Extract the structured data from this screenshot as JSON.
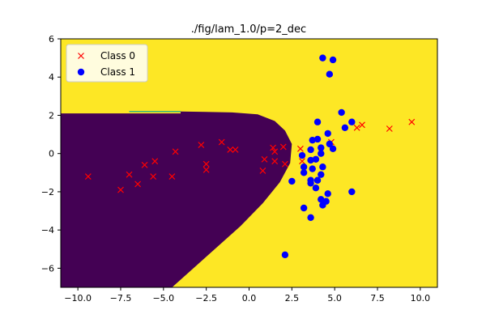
{
  "chart_data": {
    "type": "scatter",
    "title": "./fig/lam_1.0/p=2_dec",
    "xlabel": "",
    "ylabel": "",
    "xlim": [
      -11,
      11
    ],
    "ylim": [
      -7,
      6
    ],
    "x_ticks": [
      -10.0,
      -7.5,
      -5.0,
      -2.5,
      0.0,
      2.5,
      5.0,
      7.5,
      10.0
    ],
    "x_tick_labels": [
      "−10.0",
      "−7.5",
      "−5.0",
      "−2.5",
      "0.0",
      "2.5",
      "5.0",
      "7.5",
      "10.0"
    ],
    "y_ticks": [
      -6,
      -4,
      -2,
      0,
      2,
      4,
      6
    ],
    "y_tick_labels": [
      "−6",
      "−4",
      "−2",
      "0",
      "2",
      "4",
      "6"
    ],
    "grid": false,
    "legend_position": "upper-left",
    "background_regions": {
      "class0_region_color": "#440154",
      "class1_region_color": "#fde725",
      "boundary_color": "#35b779"
    },
    "series": [
      {
        "name": "Class 0",
        "marker": "x",
        "color": "#ff0000",
        "points": [
          [
            -9.4,
            -1.2
          ],
          [
            -7.5,
            -1.9
          ],
          [
            -7.0,
            -1.1
          ],
          [
            -6.5,
            -1.6
          ],
          [
            -6.1,
            -0.6
          ],
          [
            -5.6,
            -1.2
          ],
          [
            -5.5,
            -0.4
          ],
          [
            -4.5,
            -1.2
          ],
          [
            -4.3,
            0.1
          ],
          [
            -2.8,
            0.45
          ],
          [
            -2.5,
            -0.55
          ],
          [
            -2.5,
            -0.85
          ],
          [
            -1.6,
            0.6
          ],
          [
            -1.1,
            0.2
          ],
          [
            -0.8,
            0.2
          ],
          [
            0.8,
            -0.9
          ],
          [
            0.9,
            -0.3
          ],
          [
            1.4,
            0.3
          ],
          [
            1.5,
            0.1
          ],
          [
            1.5,
            -0.4
          ],
          [
            2.0,
            0.35
          ],
          [
            2.1,
            -0.55
          ],
          [
            3.0,
            0.25
          ],
          [
            3.1,
            -0.4
          ],
          [
            4.8,
            0.6
          ],
          [
            6.3,
            1.35
          ],
          [
            6.6,
            1.5
          ],
          [
            8.2,
            1.3
          ],
          [
            9.5,
            1.65
          ]
        ]
      },
      {
        "name": "Class 1",
        "marker": "o",
        "color": "#0000ff",
        "points": [
          [
            4.3,
            5.0
          ],
          [
            4.9,
            4.9
          ],
          [
            4.7,
            4.15
          ],
          [
            5.4,
            2.15
          ],
          [
            6.0,
            1.65
          ],
          [
            4.0,
            1.65
          ],
          [
            5.6,
            1.35
          ],
          [
            4.6,
            1.05
          ],
          [
            3.7,
            0.7
          ],
          [
            4.0,
            0.75
          ],
          [
            4.7,
            0.5
          ],
          [
            3.6,
            0.2
          ],
          [
            4.2,
            0.3
          ],
          [
            4.9,
            0.25
          ],
          [
            3.1,
            -0.1
          ],
          [
            4.2,
            0.0
          ],
          [
            3.6,
            -0.35
          ],
          [
            3.9,
            -0.3
          ],
          [
            3.2,
            -0.7
          ],
          [
            3.7,
            -0.8
          ],
          [
            4.3,
            -0.7
          ],
          [
            3.2,
            -1.0
          ],
          [
            4.2,
            -1.1
          ],
          [
            2.5,
            -1.45
          ],
          [
            3.6,
            -1.4
          ],
          [
            3.6,
            -1.55
          ],
          [
            4.0,
            -1.4
          ],
          [
            3.9,
            -1.8
          ],
          [
            4.6,
            -2.1
          ],
          [
            6.0,
            -2.0
          ],
          [
            4.2,
            -2.4
          ],
          [
            4.5,
            -2.5
          ],
          [
            4.3,
            -2.7
          ],
          [
            3.2,
            -2.85
          ],
          [
            3.6,
            -3.35
          ],
          [
            2.1,
            -5.3
          ]
        ]
      }
    ]
  }
}
